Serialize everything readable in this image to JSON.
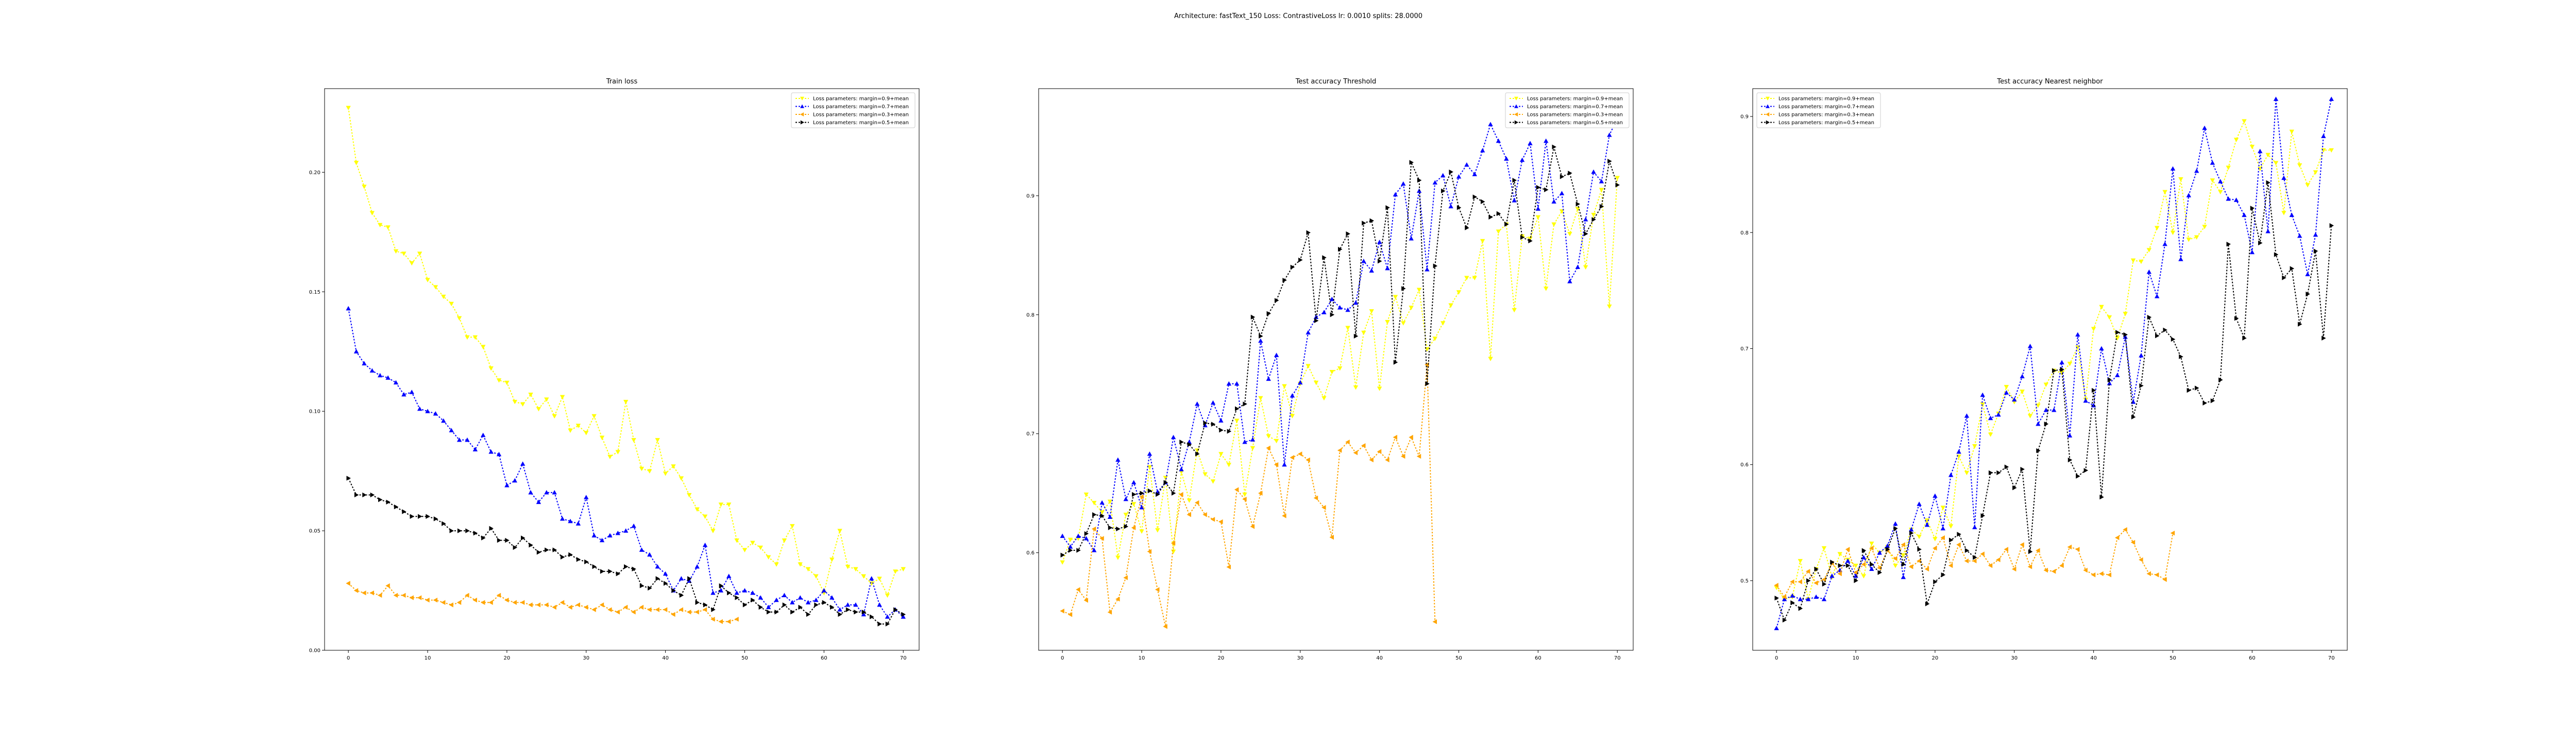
{
  "suptitle": "Architecture: fastText_150 Loss: ContrastiveLoss lr: 0.0010 splits: 28.0000",
  "legend_labels": [
    "Loss parameters: margin=0.9+mean",
    "Loss parameters: margin=0.7+mean",
    "Loss parameters: margin=0.3+mean",
    "Loss parameters: margin=0.5+mean"
  ],
  "colors": [
    "#ffff00",
    "#0000ff",
    "#ffa500",
    "#000000"
  ],
  "chart_data": [
    {
      "type": "line",
      "title": "Train loss",
      "xlabel": "",
      "ylabel": "",
      "xlim": [
        -3,
        72
      ],
      "ylim": [
        0.0,
        0.235
      ],
      "xticks": [
        0,
        10,
        20,
        30,
        40,
        50,
        60,
        70
      ],
      "yticks": [
        0.0,
        0.05,
        0.1,
        0.15,
        0.2
      ],
      "ytick_labels": [
        "0.00",
        "0.05",
        "0.10",
        "0.15",
        "0.20"
      ],
      "legend": "upper right",
      "series": [
        {
          "name": "Loss parameters: margin=0.9+mean",
          "color": "#ffff00",
          "marker": "v",
          "x_start": 0,
          "values": [
            0.227,
            0.204,
            0.194,
            0.183,
            0.178,
            0.177,
            0.167,
            0.166,
            0.162,
            0.166,
            0.155,
            0.152,
            0.148,
            0.145,
            0.139,
            0.131,
            0.131,
            0.127,
            0.118,
            0.113,
            0.112,
            0.104,
            0.103,
            0.107,
            0.101,
            0.105,
            0.098,
            0.106,
            0.092,
            0.094,
            0.091,
            0.098,
            0.089,
            0.081,
            0.083,
            0.104,
            0.088,
            0.076,
            0.075,
            0.088,
            0.074,
            0.077,
            0.072,
            0.065,
            0.059,
            0.056,
            0.05,
            0.061,
            0.061,
            0.046,
            0.042,
            0.045,
            0.043,
            0.039,
            0.036,
            0.046,
            0.052,
            0.036,
            0.034,
            0.031,
            0.024,
            0.038,
            0.05,
            0.035,
            0.034,
            0.031,
            0.028,
            0.03,
            0.023,
            0.033,
            0.034
          ]
        },
        {
          "name": "Loss parameters: margin=0.7+mean",
          "color": "#0000ff",
          "marker": "^",
          "x_start": 0,
          "values": [
            0.143,
            0.125,
            0.12,
            0.117,
            0.115,
            0.114,
            0.112,
            0.107,
            0.108,
            0.101,
            0.1,
            0.099,
            0.096,
            0.092,
            0.088,
            0.088,
            0.084,
            0.09,
            0.083,
            0.082,
            0.069,
            0.071,
            0.078,
            0.066,
            0.062,
            0.066,
            0.066,
            0.055,
            0.054,
            0.053,
            0.064,
            0.048,
            0.046,
            0.048,
            0.049,
            0.05,
            0.052,
            0.042,
            0.04,
            0.035,
            0.032,
            0.025,
            0.03,
            0.029,
            0.035,
            0.044,
            0.024,
            0.025,
            0.031,
            0.024,
            0.025,
            0.024,
            0.022,
            0.018,
            0.021,
            0.023,
            0.02,
            0.022,
            0.02,
            0.021,
            0.025,
            0.022,
            0.017,
            0.019,
            0.019,
            0.015,
            0.03,
            0.019,
            0.014,
            0.017,
            0.014
          ]
        },
        {
          "name": "Loss parameters: margin=0.3+mean",
          "color": "#ffa500",
          "marker": "<",
          "x_start": 0,
          "values": [
            0.028,
            0.025,
            0.024,
            0.024,
            0.023,
            0.027,
            0.023,
            0.023,
            0.022,
            0.022,
            0.021,
            0.021,
            0.02,
            0.019,
            0.02,
            0.023,
            0.021,
            0.02,
            0.02,
            0.023,
            0.021,
            0.02,
            0.02,
            0.019,
            0.019,
            0.019,
            0.018,
            0.02,
            0.018,
            0.019,
            0.018,
            0.017,
            0.019,
            0.017,
            0.016,
            0.018,
            0.016,
            0.018,
            0.017,
            0.017,
            0.017,
            0.015,
            0.017,
            0.016,
            0.016,
            0.017,
            0.013,
            0.012,
            0.012,
            0.013
          ]
        },
        {
          "name": "Loss parameters: margin=0.5+mean",
          "color": "#000000",
          "marker": ">",
          "x_start": 0,
          "values": [
            0.072,
            0.065,
            0.065,
            0.065,
            0.063,
            0.062,
            0.06,
            0.058,
            0.056,
            0.056,
            0.056,
            0.055,
            0.053,
            0.05,
            0.05,
            0.05,
            0.049,
            0.047,
            0.051,
            0.046,
            0.046,
            0.043,
            0.047,
            0.044,
            0.041,
            0.042,
            0.042,
            0.039,
            0.04,
            0.038,
            0.037,
            0.035,
            0.033,
            0.033,
            0.032,
            0.035,
            0.034,
            0.027,
            0.026,
            0.03,
            0.028,
            0.025,
            0.023,
            0.03,
            0.02,
            0.019,
            0.017,
            0.027,
            0.024,
            0.022,
            0.019,
            0.021,
            0.018,
            0.016,
            0.016,
            0.019,
            0.016,
            0.018,
            0.015,
            0.019,
            0.02,
            0.018,
            0.015,
            0.017,
            0.016,
            0.016,
            0.014,
            0.011,
            0.011,
            0.017,
            0.015
          ]
        }
      ]
    },
    {
      "type": "line",
      "title": "Test accuracy Threshold",
      "xlabel": "",
      "ylabel": "",
      "xlim": [
        -3,
        72
      ],
      "ylim": [
        0.518,
        0.99
      ],
      "xticks": [
        0,
        10,
        20,
        30,
        40,
        50,
        60,
        70
      ],
      "yticks": [
        0.6,
        0.7,
        0.8,
        0.9
      ],
      "ytick_labels": [
        "0.6",
        "0.7",
        "0.8",
        "0.9"
      ],
      "legend": "upper right",
      "series": [
        {
          "name": "Loss parameters: margin=0.9+mean",
          "color": "#ffff00",
          "marker": "v",
          "x_start": 0,
          "values": [
            0.592,
            0.611,
            0.612,
            0.649,
            0.642,
            0.634,
            0.643,
            0.596,
            0.632,
            0.641,
            0.618,
            0.672,
            0.619,
            0.663,
            0.601,
            0.668,
            0.644,
            0.686,
            0.666,
            0.66,
            0.683,
            0.674,
            0.711,
            0.649,
            0.688,
            0.73,
            0.698,
            0.694,
            0.74,
            0.715,
            0.742,
            0.757,
            0.743,
            0.73,
            0.752,
            0.755,
            0.789,
            0.739,
            0.785,
            0.803,
            0.738,
            0.794,
            0.815,
            0.793,
            0.806,
            0.821,
            0.771,
            0.78,
            0.793,
            0.808,
            0.819,
            0.831,
            0.831,
            0.862,
            0.763,
            0.87,
            0.876,
            0.804,
            0.866,
            0.864,
            0.882,
            0.822,
            0.876,
            0.887,
            0.868,
            0.889,
            0.84,
            0.884,
            0.905,
            0.807,
            0.915
          ]
        },
        {
          "name": "Loss parameters: margin=0.7+mean",
          "color": "#0000ff",
          "marker": "^",
          "x_start": 0,
          "values": [
            0.614,
            0.605,
            0.614,
            0.612,
            0.602,
            0.642,
            0.63,
            0.678,
            0.645,
            0.659,
            0.638,
            0.683,
            0.651,
            0.659,
            0.697,
            0.67,
            0.693,
            0.725,
            0.707,
            0.726,
            0.711,
            0.742,
            0.742,
            0.693,
            0.695,
            0.778,
            0.746,
            0.766,
            0.674,
            0.732,
            0.743,
            0.785,
            0.798,
            0.802,
            0.813,
            0.806,
            0.804,
            0.81,
            0.845,
            0.837,
            0.861,
            0.839,
            0.901,
            0.91,
            0.864,
            0.904,
            0.838,
            0.911,
            0.917,
            0.891,
            0.916,
            0.926,
            0.918,
            0.938,
            0.96,
            0.946,
            0.931,
            0.896,
            0.93,
            0.944,
            0.889,
            0.946,
            0.895,
            0.902,
            0.828,
            0.84,
            0.88,
            0.92,
            0.912,
            0.951,
            0.965
          ]
        },
        {
          "name": "Loss parameters: margin=0.3+mean",
          "color": "#ffa500",
          "marker": "<",
          "x_start": 0,
          "values": [
            0.551,
            0.548,
            0.569,
            0.56,
            0.62,
            0.612,
            0.55,
            0.561,
            0.579,
            0.621,
            0.647,
            0.601,
            0.569,
            0.538,
            0.608,
            0.649,
            0.632,
            0.642,
            0.632,
            0.628,
            0.626,
            0.588,
            0.653,
            0.645,
            0.622,
            0.65,
            0.688,
            0.674,
            0.631,
            0.68,
            0.683,
            0.678,
            0.646,
            0.638,
            0.613,
            0.686,
            0.693,
            0.684,
            0.69,
            0.678,
            0.685,
            0.678,
            0.697,
            0.681,
            0.697,
            0.681,
            0.758,
            0.542
          ]
        },
        {
          "name": "Loss parameters: margin=0.5+mean",
          "color": "#000000",
          "marker": ">",
          "x_start": 0,
          "values": [
            0.598,
            0.602,
            0.602,
            0.616,
            0.632,
            0.631,
            0.621,
            0.62,
            0.622,
            0.649,
            0.65,
            0.652,
            0.649,
            0.659,
            0.65,
            0.693,
            0.691,
            0.683,
            0.709,
            0.708,
            0.703,
            0.702,
            0.721,
            0.725,
            0.798,
            0.782,
            0.801,
            0.812,
            0.829,
            0.84,
            0.846,
            0.869,
            0.795,
            0.848,
            0.8,
            0.855,
            0.868,
            0.782,
            0.877,
            0.879,
            0.845,
            0.89,
            0.76,
            0.822,
            0.928,
            0.913,
            0.742,
            0.841,
            0.904,
            0.92,
            0.89,
            0.873,
            0.899,
            0.895,
            0.882,
            0.885,
            0.876,
            0.913,
            0.865,
            0.862,
            0.907,
            0.905,
            0.941,
            0.916,
            0.919,
            0.893,
            0.868,
            0.88,
            0.891,
            0.929,
            0.909
          ]
        }
      ]
    },
    {
      "type": "line",
      "title": "Test accuracy Nearest neighbor",
      "xlabel": "",
      "ylabel": "",
      "xlim": [
        -3,
        72
      ],
      "ylim": [
        0.44,
        0.924
      ],
      "xticks": [
        0,
        10,
        20,
        30,
        40,
        50,
        60,
        70
      ],
      "yticks": [
        0.5,
        0.6,
        0.7,
        0.8,
        0.9
      ],
      "ytick_labels": [
        "0.5",
        "0.6",
        "0.7",
        "0.8",
        "0.9"
      ],
      "legend": "upper left",
      "series": [
        {
          "name": "Loss parameters: margin=0.9+mean",
          "color": "#ffff00",
          "marker": "v",
          "x_start": 0,
          "values": [
            0.494,
            0.484,
            0.486,
            0.517,
            0.484,
            0.51,
            0.528,
            0.503,
            0.523,
            0.518,
            0.513,
            0.504,
            0.532,
            0.524,
            0.529,
            0.513,
            0.522,
            0.544,
            0.538,
            0.552,
            0.536,
            0.563,
            0.547,
            0.607,
            0.593,
            0.616,
            0.652,
            0.626,
            0.644,
            0.667,
            0.654,
            0.663,
            0.642,
            0.651,
            0.669,
            0.681,
            0.679,
            0.687,
            0.701,
            0.656,
            0.717,
            0.736,
            0.727,
            0.709,
            0.73,
            0.776,
            0.775,
            0.785,
            0.804,
            0.835,
            0.8,
            0.846,
            0.794,
            0.796,
            0.805,
            0.845,
            0.835,
            0.856,
            0.88,
            0.896,
            0.874,
            0.855,
            0.867,
            0.86,
            0.817,
            0.887,
            0.858,
            0.841,
            0.852,
            0.871,
            0.871
          ]
        },
        {
          "name": "Loss parameters: margin=0.7+mean",
          "color": "#0000ff",
          "marker": "^",
          "x_start": 0,
          "values": [
            0.459,
            0.484,
            0.487,
            0.484,
            0.484,
            0.486,
            0.484,
            0.504,
            0.509,
            0.517,
            0.504,
            0.52,
            0.51,
            0.524,
            0.53,
            0.549,
            0.503,
            0.544,
            0.566,
            0.548,
            0.573,
            0.545,
            0.591,
            0.611,
            0.642,
            0.546,
            0.66,
            0.64,
            0.643,
            0.662,
            0.656,
            0.676,
            0.702,
            0.635,
            0.647,
            0.647,
            0.688,
            0.625,
            0.712,
            0.655,
            0.651,
            0.7,
            0.67,
            0.677,
            0.71,
            0.654,
            0.694,
            0.766,
            0.745,
            0.79,
            0.855,
            0.777,
            0.832,
            0.853,
            0.89,
            0.86,
            0.844,
            0.829,
            0.828,
            0.815,
            0.783,
            0.87,
            0.801,
            0.915,
            0.847,
            0.815,
            0.797,
            0.764,
            0.798,
            0.883,
            0.915
          ]
        },
        {
          "name": "Loss parameters: margin=0.3+mean",
          "color": "#ffa500",
          "marker": "<",
          "x_start": 0,
          "values": [
            0.496,
            0.486,
            0.499,
            0.499,
            0.508,
            0.498,
            0.501,
            0.515,
            0.506,
            0.527,
            0.507,
            0.514,
            0.528,
            0.511,
            0.526,
            0.519,
            0.531,
            0.512,
            0.517,
            0.51,
            0.528,
            0.537,
            0.513,
            0.531,
            0.517,
            0.517,
            0.523,
            0.513,
            0.518,
            0.527,
            0.51,
            0.531,
            0.512,
            0.526,
            0.509,
            0.508,
            0.513,
            0.529,
            0.527,
            0.509,
            0.505,
            0.506,
            0.505,
            0.537,
            0.544,
            0.533,
            0.518,
            0.506,
            0.505,
            0.501,
            0.541
          ]
        },
        {
          "name": "Loss parameters: margin=0.5+mean",
          "color": "#000000",
          "marker": ">",
          "x_start": 0,
          "values": [
            0.485,
            0.466,
            0.481,
            0.476,
            0.5,
            0.51,
            0.497,
            0.516,
            0.513,
            0.513,
            0.5,
            0.526,
            0.514,
            0.507,
            0.527,
            0.545,
            0.514,
            0.541,
            0.527,
            0.48,
            0.499,
            0.505,
            0.535,
            0.54,
            0.526,
            0.52,
            0.556,
            0.593,
            0.593,
            0.598,
            0.58,
            0.596,
            0.525,
            0.612,
            0.635,
            0.681,
            0.682,
            0.604,
            0.59,
            0.595,
            0.664,
            0.572,
            0.673,
            0.714,
            0.712,
            0.641,
            0.668,
            0.727,
            0.711,
            0.716,
            0.708,
            0.693,
            0.664,
            0.666,
            0.653,
            0.655,
            0.673,
            0.79,
            0.726,
            0.709,
            0.821,
            0.791,
            0.843,
            0.781,
            0.761,
            0.769,
            0.721,
            0.747,
            0.784,
            0.709,
            0.806
          ]
        }
      ]
    }
  ]
}
